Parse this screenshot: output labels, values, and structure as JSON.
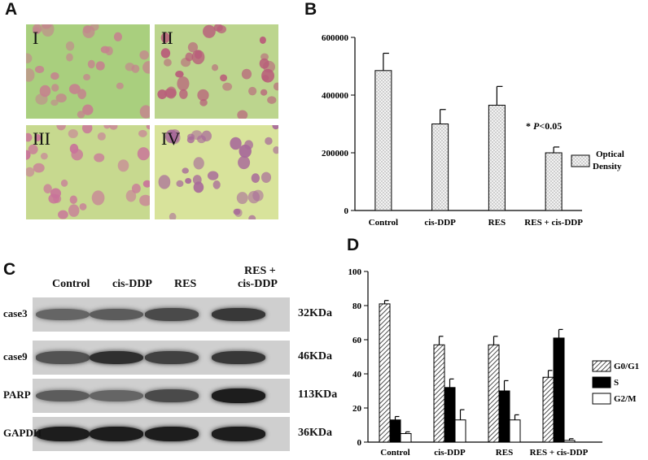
{
  "panels": {
    "a": {
      "letter": "A",
      "images": [
        {
          "numeral": "I",
          "tint": "#a9cf7e",
          "cell": "#c5828e"
        },
        {
          "numeral": "II",
          "tint": "#bcd58e",
          "cell": "#b95d7a"
        },
        {
          "numeral": "III",
          "tint": "#c7d98f",
          "cell": "#c9739a"
        },
        {
          "numeral": "IV",
          "tint": "#d8e39b",
          "cell": "#a86a9a"
        }
      ]
    },
    "b": {
      "letter": "B"
    },
    "c": {
      "letter": "C",
      "lanes": [
        "Control",
        "cis-DDP",
        "RES",
        "RES +",
        "cis-DDP"
      ],
      "blots": [
        {
          "label": "case3",
          "size": "32KDa",
          "intensity": [
            0.55,
            0.6,
            0.7,
            0.8
          ]
        },
        {
          "label": "case9",
          "size": "46KDa",
          "intensity": [
            0.65,
            0.85,
            0.75,
            0.8
          ]
        },
        {
          "label": "PARP",
          "size": "113KDa",
          "intensity": [
            0.6,
            0.55,
            0.7,
            0.95
          ]
        },
        {
          "label": "GAPDH",
          "size": "36KDa",
          "intensity": [
            0.95,
            0.95,
            0.95,
            0.95
          ]
        }
      ]
    },
    "d": {
      "letter": "D"
    }
  },
  "chart_data": [
    {
      "type": "bar",
      "categories": [
        "Control",
        "cis-DDP",
        "RES",
        "RES + cis-DDP"
      ],
      "series": [
        {
          "name": "Optical Density",
          "values": [
            485000,
            300000,
            365000,
            200000
          ],
          "errors": [
            60000,
            50000,
            65000,
            20000
          ]
        }
      ],
      "legend": {
        "lines": [
          "Optical",
          "Density"
        ],
        "placement": "right"
      },
      "ylim": [
        0,
        600000
      ],
      "yticks": [
        0,
        200000,
        400000,
        600000
      ],
      "annotation": {
        "star": "*",
        "p": "P",
        "rest": "<0.05",
        "category": "RES + cis-DDP"
      },
      "colors": {
        "bar_fill": "#f2f2f2",
        "dot": "#9a9a9a"
      }
    },
    {
      "type": "bar",
      "categories": [
        "Control",
        "cis-DDP",
        "RES",
        "RES + cis-DDP"
      ],
      "series": [
        {
          "name": "G0/G1",
          "values": [
            81,
            57,
            57,
            38
          ],
          "errors": [
            2,
            5,
            5,
            4
          ]
        },
        {
          "name": "S",
          "values": [
            13,
            32,
            30,
            61
          ],
          "errors": [
            2,
            5,
            6,
            5
          ]
        },
        {
          "name": "G2/M",
          "values": [
            5,
            13,
            13,
            1
          ],
          "errors": [
            1,
            6,
            3,
            1
          ]
        }
      ],
      "legend": {
        "placement": "right"
      },
      "ylim": [
        0,
        100
      ],
      "yticks": [
        0,
        20,
        40,
        60,
        80,
        100
      ]
    }
  ]
}
